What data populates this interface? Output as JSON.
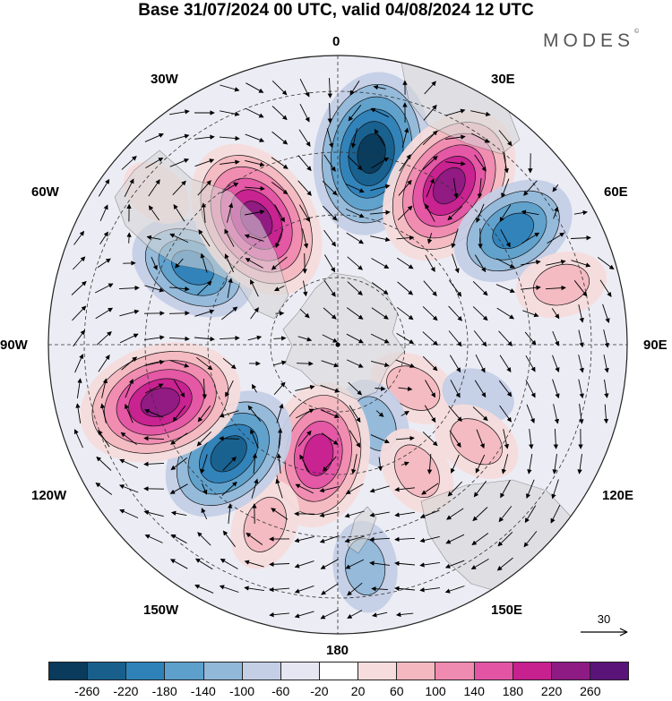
{
  "title": "Base 31/07/2024 00 UTC, valid 04/08/2024 12 UTC",
  "brand": {
    "name": "MODES",
    "mark": "©"
  },
  "longitude_labels": {
    "lon_0": "0",
    "lon_30e": "30E",
    "lon_60e": "60E",
    "lon_90e": "90E",
    "lon_120e": "120E",
    "lon_150e": "150E",
    "lon_180": "180",
    "lon_150w": "150W",
    "lon_120w": "120W",
    "lon_90w": "90W",
    "lon_60w": "60W",
    "lon_30w": "30W"
  },
  "map": {
    "projection": "south-polar-stereographic",
    "field": "height anomaly (shaded) with wind vectors",
    "reference_vector": "30",
    "anomaly_centres": [
      {
        "sign": "negative",
        "lon": 10,
        "lat_ring": 0.78,
        "strength": -240
      },
      {
        "sign": "positive",
        "lon": 35,
        "lat_ring": 0.78,
        "strength": 220
      },
      {
        "sign": "negative",
        "lon": 57,
        "lat_ring": 0.84,
        "strength": -160
      },
      {
        "sign": "positive",
        "lon": 75,
        "lat_ring": 0.93,
        "strength": 60
      },
      {
        "sign": "positive",
        "lon": 120,
        "lat_ring": 0.35,
        "strength": 60
      },
      {
        "sign": "negative",
        "lon": 155,
        "lat_ring": 0.35,
        "strength": -80
      },
      {
        "sign": "negative",
        "lon": 110,
        "lat_ring": 0.6,
        "strength": -40
      },
      {
        "sign": "positive",
        "lon": 125,
        "lat_ring": 0.68,
        "strength": 60
      },
      {
        "sign": "positive",
        "lon": 148,
        "lat_ring": 0.6,
        "strength": 80
      },
      {
        "sign": "negative",
        "lon": 173,
        "lat_ring": 0.9,
        "strength": -60
      },
      {
        "sign": "positive",
        "lon": -170,
        "lat_ring": 0.45,
        "strength": 200
      },
      {
        "sign": "positive",
        "lon": -158,
        "lat_ring": 0.78,
        "strength": 60
      },
      {
        "sign": "negative",
        "lon": -135,
        "lat_ring": 0.62,
        "strength": -180
      },
      {
        "sign": "positive",
        "lon": -108,
        "lat_ring": 0.75,
        "strength": 240
      },
      {
        "sign": "negative",
        "lon": -62,
        "lat_ring": 0.66,
        "strength": -150
      },
      {
        "sign": "positive",
        "lon": -33,
        "lat_ring": 0.6,
        "strength": 240
      },
      {
        "sign": "positive",
        "lon": -50,
        "lat_ring": 0.95,
        "strength": 40
      }
    ]
  },
  "colorbar": {
    "colors": [
      "#0a3a5c",
      "#185f8c",
      "#2f82b8",
      "#5ea0cc",
      "#92b8d9",
      "#c4cfe6",
      "#e6e6f2",
      "#ffffff",
      "#f6dcdc",
      "#f3b8c0",
      "#ef8ab0",
      "#e355a4",
      "#c7208f",
      "#8e1a83",
      "#5a1479"
    ],
    "labels": [
      "-260",
      "-220",
      "-180",
      "-140",
      "-100",
      "-60",
      "-20",
      "20",
      "60",
      "100",
      "140",
      "180",
      "220",
      "260"
    ]
  }
}
